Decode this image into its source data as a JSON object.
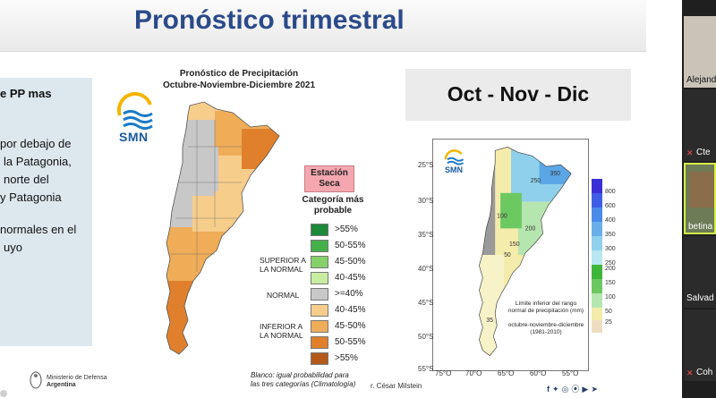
{
  "slide": {
    "title": "Pronóstico trimestral",
    "left_text": [
      "e PP mas",
      " por debajo de",
      "la Patagonia,",
      "norte del",
      "y Patagonia",
      "normales en el",
      "uyo"
    ],
    "map1": {
      "title_line1": "Pronóstico de Precipitación",
      "title_line2": "Octubre-Noviembre-Diciembre 2021",
      "agency": "SMN",
      "dry_season_line1": "Estación",
      "dry_season_line2": "Seca",
      "legend_heading_line1": "Categoría más",
      "legend_heading_line2": "probable",
      "legend_items": [
        {
          "label": ">55%",
          "color": "#1e8a3a"
        },
        {
          "label": "50-55%",
          "color": "#45b049"
        },
        {
          "label": "45-50%",
          "color": "#86d06a"
        },
        {
          "label": "40-45%",
          "color": "#c8eda2"
        },
        {
          "label": ">=40%",
          "color": "#c8c8c8"
        },
        {
          "label": "40-45%",
          "color": "#f7cd8c"
        },
        {
          "label": "45-50%",
          "color": "#efad58"
        },
        {
          "label": "50-55%",
          "color": "#e0802c"
        },
        {
          "label": ">55%",
          "color": "#b35a1a"
        }
      ],
      "group_superior_line1": "SUPERIOR A",
      "group_superior_line2": "LA NORMAL",
      "group_normal": "NORMAL",
      "group_inferior_line1": "INFERIOR A",
      "group_inferior_line2": "LA NORMAL",
      "note_line1": "Blanco: igual probabilidad para",
      "note_line2": "las tres categorías (Climatología)",
      "credit": "r. César Milstein"
    },
    "right_box_label": "Oct - Nov - Dic",
    "map2": {
      "agency": "SMN",
      "latitudes": [
        "25°S",
        "30°S",
        "35°S",
        "40°S",
        "45°S",
        "50°S",
        "55°S"
      ],
      "longitudes": [
        "75°O",
        "70°O",
        "65°O",
        "60°O",
        "55°O"
      ],
      "colorbar_labels": [
        "800",
        "600",
        "400",
        "350",
        "300",
        "250",
        "200",
        "150",
        "100",
        "50",
        "25"
      ],
      "contours": [
        "250",
        "350",
        "100",
        "200",
        "150",
        "50",
        "35"
      ],
      "note_line1": "Límite inferior del rango",
      "note_line2": "normal de precipitación (mm)",
      "period_line1": "octubre-noviembre-diciembre",
      "period_line2": "(1981-2010)"
    },
    "footer": {
      "ministry_line1": "Ministerio de Defensa",
      "ministry_line2": "Argentina",
      "social_icons": [
        "f",
        "twitter-icon",
        "instagram-icon",
        "flickr-icon",
        "youtube-icon",
        "telegram-icon"
      ]
    }
  },
  "participants": [
    {
      "name": "Alejand",
      "muted": false
    },
    {
      "name": "Cte",
      "muted": true
    },
    {
      "name": "betina",
      "muted": false
    },
    {
      "name": "Salvad",
      "muted": false
    },
    {
      "name": "Coh",
      "muted": true
    }
  ],
  "colors": {
    "title": "#2b4a8a",
    "panel": "#dde8ee",
    "smn_blue": "#1a5aa0"
  }
}
